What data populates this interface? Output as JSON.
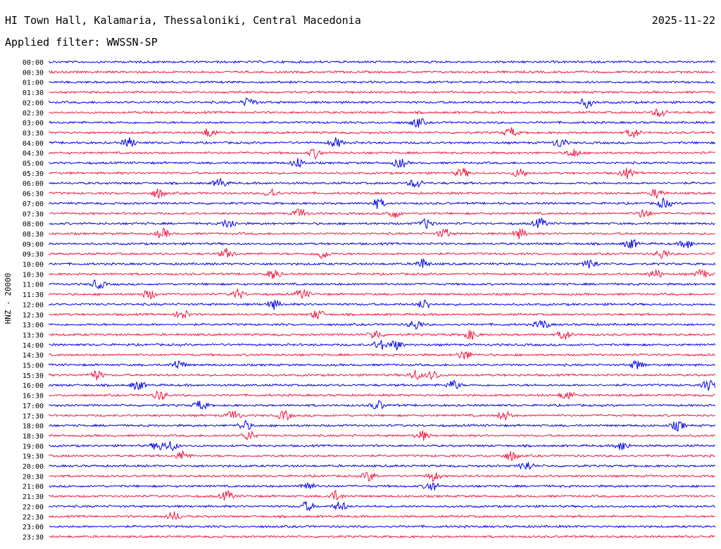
{
  "header": {
    "station": "HI Town Hall, Kalamaria, Thessaloniki, Central Macedonia",
    "date": "2025-11-22",
    "filter_label": "Applied filter: WWSSN-SP"
  },
  "colors": {
    "even_row": "#0000e6",
    "odd_row": "#ee1a44"
  },
  "chart_data": {
    "type": "line",
    "title": "HI Town Hall, Kalamaria, Thessaloniki, Central Macedonia",
    "ylabel": "HNZ - 20000",
    "row_labels": [
      "00:00",
      "00:30",
      "01:00",
      "01:30",
      "02:00",
      "02:30",
      "03:00",
      "03:30",
      "04:00",
      "04:30",
      "05:00",
      "05:30",
      "06:00",
      "06:30",
      "07:00",
      "07:30",
      "08:00",
      "08:30",
      "09:00",
      "09:30",
      "10:00",
      "10:30",
      "11:00",
      "11:30",
      "12:00",
      "12:30",
      "13:00",
      "13:30",
      "14:00",
      "14:30",
      "15:00",
      "15:30",
      "16:00",
      "16:30",
      "17:00",
      "17:30",
      "18:00",
      "18:30",
      "19:00",
      "19:30",
      "20:00",
      "20:30",
      "21:00",
      "21:30",
      "22:00",
      "22:30",
      "23:00",
      "23:30"
    ],
    "series_colors": [
      "blue",
      "red"
    ],
    "events_description": "Noise traces with bursts per row; burst minute offsets within each 30-min row",
    "bursts": [
      [],
      [],
      [],
      [],
      [
        9.0,
        24.2
      ],
      [
        27.5
      ],
      [
        16.6
      ],
      [
        7.2,
        20.8,
        26.3
      ],
      [
        3.6,
        12.9,
        23.0
      ],
      [
        12.0,
        23.6
      ],
      [
        11.2,
        15.8
      ],
      [
        18.6,
        21.2,
        26.0
      ],
      [
        7.7,
        16.5
      ],
      [
        4.9,
        10.0,
        27.4
      ],
      [
        14.8,
        27.7
      ],
      [
        11.3,
        15.5,
        26.8
      ],
      [
        8.1,
        17.0,
        22.1
      ],
      [
        5.1,
        17.8,
        21.2
      ],
      [
        26.2,
        28.7
      ],
      [
        8.0,
        12.3,
        27.6
      ],
      [
        16.8,
        24.4
      ],
      [
        10.1,
        27.3,
        29.4
      ],
      [
        2.2
      ],
      [
        4.5,
        8.5,
        11.4
      ],
      [
        10.1,
        16.9
      ],
      [
        6.0,
        12.1
      ],
      [
        16.5,
        22.2
      ],
      [
        14.7,
        19.0,
        23.2
      ],
      [
        14.9,
        15.6
      ],
      [
        18.7
      ],
      [
        5.8,
        26.5
      ],
      [
        2.1,
        16.5,
        17.3
      ],
      [
        4.0,
        18.2,
        29.7
      ],
      [
        5.0,
        23.3
      ],
      [
        6.8,
        14.8
      ],
      [
        8.3,
        10.6,
        20.5
      ],
      [
        8.8,
        28.3
      ],
      [
        9.0,
        16.8
      ],
      [
        4.9,
        5.5,
        25.8
      ],
      [
        6.0,
        20.8
      ],
      [
        21.5
      ],
      [
        14.4,
        17.3
      ],
      [
        11.6,
        17.2
      ],
      [
        8.0,
        12.9
      ],
      [
        11.6,
        13.1
      ],
      [
        5.6
      ],
      [],
      []
    ]
  }
}
